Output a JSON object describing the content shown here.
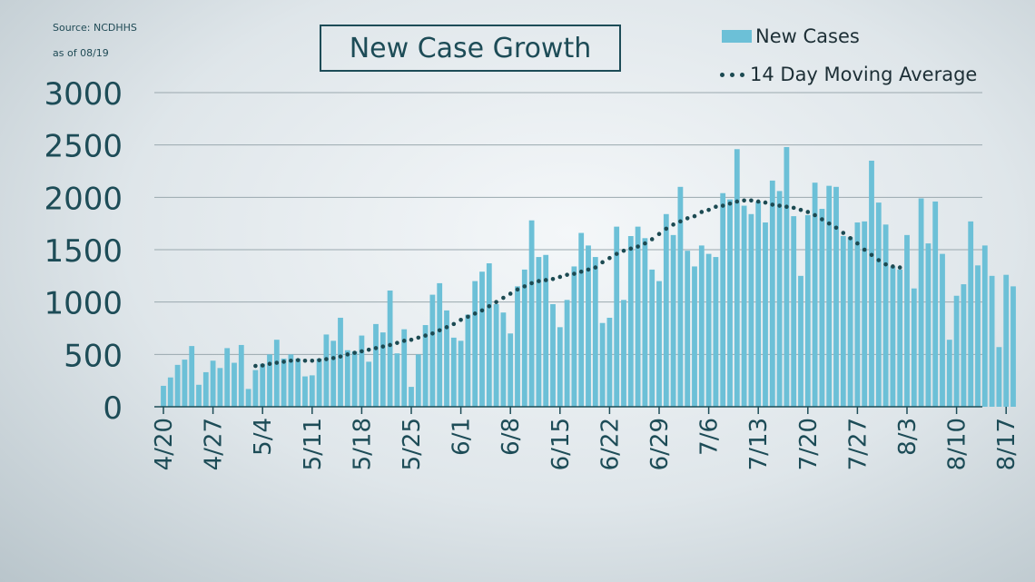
{
  "source": {
    "line1": "Source:  NCDHHS",
    "line2": "as of 08/19"
  },
  "colors": {
    "bar": "#6cc0d7",
    "avg": "#1c4a52",
    "axis": "#1d4c57",
    "grid": "#9aa8ae"
  },
  "chart_data": {
    "type": "bar",
    "title": "New Case Growth",
    "xlabel": "",
    "ylabel": "",
    "ylim": [
      0,
      3000
    ],
    "yticks": [
      0,
      500,
      1000,
      1500,
      2000,
      2500,
      3000
    ],
    "grid": true,
    "legend_position": "top-right",
    "x_tick_labels": [
      "4/20",
      "4/27",
      "5/4",
      "5/11",
      "5/18",
      "5/25",
      "6/1",
      "6/8",
      "6/15",
      "6/22",
      "6/29",
      "7/6",
      "7/13",
      "7/20",
      "7/27",
      "8/3",
      "8/10",
      "8/17"
    ],
    "x_tick_start_day": 0,
    "x_tick_step_days": 7,
    "series": [
      {
        "name": "New Cases",
        "kind": "bar",
        "values": [
          200,
          280,
          400,
          450,
          580,
          210,
          330,
          440,
          370,
          560,
          420,
          590,
          170,
          350,
          410,
          500,
          640,
          460,
          500,
          460,
          290,
          300,
          460,
          690,
          630,
          850,
          540,
          530,
          680,
          430,
          790,
          710,
          1110,
          510,
          740,
          190,
          500,
          780,
          1070,
          1180,
          920,
          660,
          630,
          880,
          1200,
          1290,
          1370,
          980,
          900,
          700,
          1150,
          1310,
          1780,
          1430,
          1450,
          980,
          760,
          1020,
          1340,
          1660,
          1540,
          1430,
          800,
          850,
          1720,
          1020,
          1630,
          1720,
          1610,
          1310,
          1200,
          1840,
          1640,
          2100,
          1490,
          1340,
          1540,
          1460,
          1430,
          2040,
          1980,
          2460,
          1920,
          1840,
          1960,
          1760,
          2160,
          2060,
          2480,
          1820,
          1250,
          1830,
          2140,
          1890,
          2110,
          2100,
          1630,
          1620,
          1760,
          1770,
          2350,
          1950,
          1740,
          1340,
          1310,
          1640,
          1130,
          1990,
          1560,
          1960,
          1460,
          640,
          1060,
          1170,
          1770,
          1350,
          1540,
          1250,
          570,
          1260,
          1150
        ]
      },
      {
        "name": "14 Day Moving Average",
        "kind": "dotted-line",
        "start_day": 13,
        "values": [
          390,
          395,
          410,
          420,
          430,
          440,
          445,
          440,
          440,
          445,
          455,
          465,
          480,
          500,
          515,
          530,
          545,
          560,
          575,
          590,
          610,
          630,
          640,
          660,
          680,
          700,
          730,
          760,
          790,
          830,
          860,
          890,
          920,
          960,
          1000,
          1040,
          1080,
          1120,
          1150,
          1180,
          1200,
          1210,
          1220,
          1240,
          1260,
          1270,
          1290,
          1310,
          1330,
          1380,
          1420,
          1460,
          1490,
          1510,
          1530,
          1560,
          1600,
          1650,
          1700,
          1740,
          1770,
          1800,
          1820,
          1860,
          1880,
          1910,
          1920,
          1940,
          1960,
          1970,
          1970,
          1960,
          1950,
          1930,
          1920,
          1910,
          1900,
          1880,
          1860,
          1830,
          1790,
          1750,
          1710,
          1660,
          1610,
          1560,
          1500,
          1450,
          1400,
          1360,
          1340,
          1330
        ]
      }
    ]
  }
}
